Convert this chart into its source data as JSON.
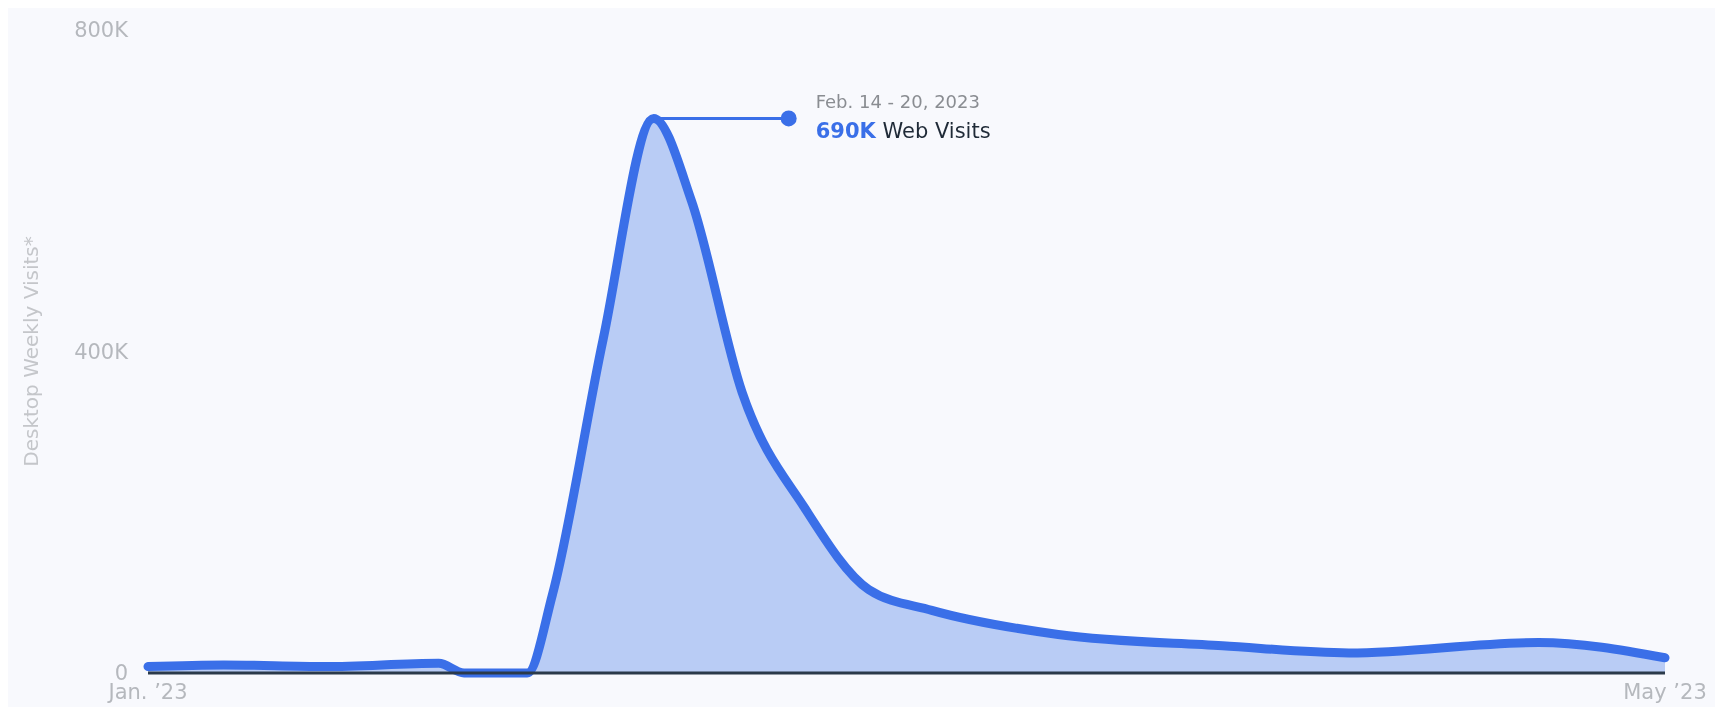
{
  "chart_data": {
    "type": "area",
    "ylabel": "Desktop Weekly Visits*",
    "x": [
      "2023-01-01",
      "2023-01-07",
      "2023-01-15",
      "2023-01-24",
      "2023-01-26",
      "2023-01-31",
      "2023-02-02",
      "2023-02-06",
      "2023-02-10",
      "2023-02-13",
      "2023-02-17",
      "2023-02-22",
      "2023-02-27",
      "2023-03-04",
      "2023-03-14",
      "2023-03-27",
      "2023-04-06",
      "2023-04-21",
      "2023-05-01"
    ],
    "series": [
      {
        "color": "#3a6fe8",
        "values": [
          8000,
          10000,
          8000,
          12000,
          0,
          0,
          98000,
          415000,
          690000,
          587000,
          349000,
          204000,
          104000,
          78000,
          48000,
          34000,
          25000,
          38000,
          19000
        ]
      }
    ],
    "xlim": [
      "2023-01-01",
      "2023-05-01"
    ],
    "xticks": [
      {
        "value": "2023-01-01",
        "label": "Jan. ’23"
      },
      {
        "value": "2023-05-01",
        "label": "May ’23"
      }
    ],
    "ylim": [
      0,
      800000
    ],
    "yticks": [
      {
        "value": 0,
        "label": "0"
      },
      {
        "value": 400000,
        "label": "400K"
      },
      {
        "value": 800000,
        "label": "800K"
      }
    ],
    "annotations": [
      {
        "text": "Feb. 14 - 20, 2023\n690K Web Visits",
        "x": "2023-02-10",
        "y": 690000
      }
    ],
    "grid": false
  }
}
